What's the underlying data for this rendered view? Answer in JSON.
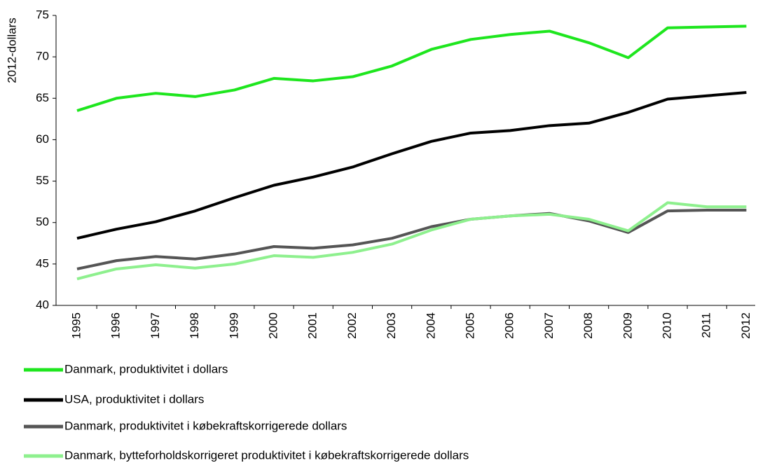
{
  "chart_data": {
    "type": "line",
    "y_label": "2012-dollars",
    "categories": [
      "1995",
      "1996",
      "1997",
      "1998",
      "1999",
      "2000",
      "2001",
      "2002",
      "2003",
      "2004",
      "2005",
      "2006",
      "2007",
      "2008",
      "2009",
      "2010",
      "2011",
      "2012"
    ],
    "series": [
      {
        "name": "Danmark, produktivitet i dollars",
        "color": "#1ee61e",
        "values": [
          63.5,
          65.0,
          65.6,
          65.2,
          66.0,
          67.4,
          67.1,
          67.6,
          68.9,
          70.9,
          72.1,
          72.7,
          73.1,
          71.7,
          69.9,
          73.5,
          73.6,
          73.7
        ]
      },
      {
        "name": "USA, produktivitet i dollars",
        "color": "#000000",
        "values": [
          48.1,
          49.2,
          50.1,
          51.4,
          53.0,
          54.5,
          55.5,
          56.7,
          58.3,
          59.8,
          60.8,
          61.1,
          61.7,
          62.0,
          63.3,
          64.9,
          65.3,
          65.7
        ]
      },
      {
        "name": "Danmark, produktivitet i købekraftskorrigerede dollars",
        "color": "#555555",
        "values": [
          44.4,
          45.4,
          45.9,
          45.6,
          46.2,
          47.1,
          46.9,
          47.3,
          48.1,
          49.5,
          50.4,
          50.8,
          51.1,
          50.2,
          48.8,
          51.4,
          51.5,
          51.5
        ]
      },
      {
        "name": "Danmark, bytteforholdskorrigeret produktivitet i købekraftskorrigerede dollars",
        "color": "#8ef08e",
        "values": [
          43.2,
          44.4,
          44.9,
          44.5,
          45.0,
          46.0,
          45.8,
          46.4,
          47.4,
          49.1,
          50.4,
          50.8,
          51.0,
          50.4,
          49.0,
          52.4,
          51.9,
          51.9
        ]
      }
    ],
    "ylim": [
      40,
      75
    ],
    "yticks": [
      40,
      45,
      50,
      55,
      60,
      65,
      70,
      75
    ],
    "grid": false,
    "legend": "bottom"
  }
}
